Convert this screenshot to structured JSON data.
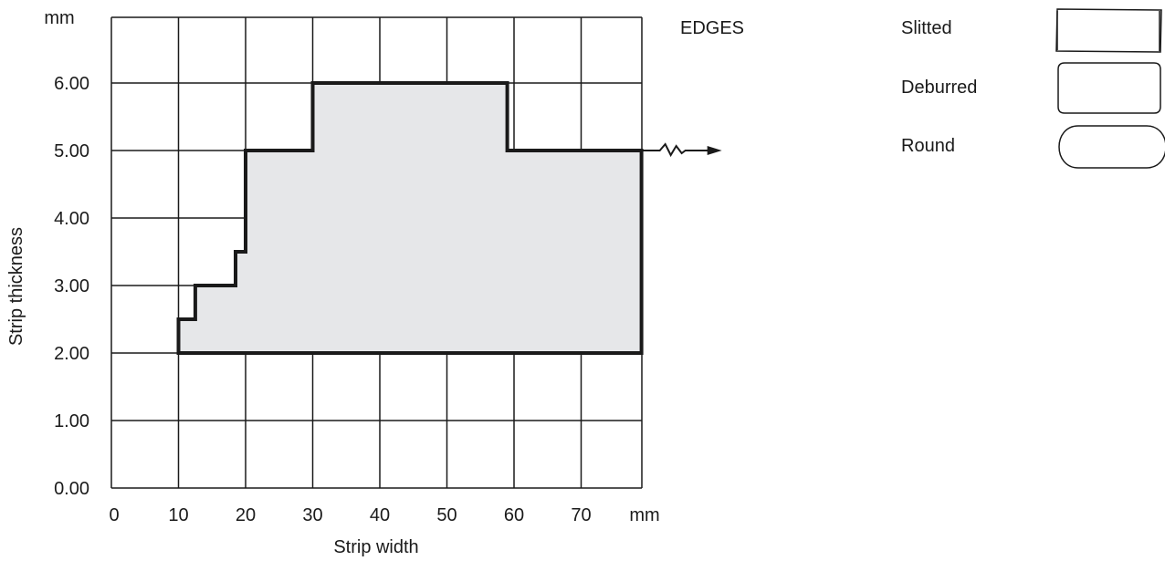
{
  "chart_data": {
    "type": "area",
    "xlabel": "Strip width",
    "ylabel": "Strip thickness",
    "x_unit": "mm",
    "y_unit": "mm",
    "xlim": [
      0,
      79
    ],
    "ylim": [
      0,
      6.3
    ],
    "x_ticks": [
      "0",
      "10",
      "20",
      "30",
      "40",
      "50",
      "60",
      "70"
    ],
    "y_ticks": [
      "0.00",
      "1.00",
      "2.00",
      "3.00",
      "4.00",
      "5.00",
      "6.00"
    ],
    "grid": true,
    "region": {
      "name": "",
      "outline": [
        {
          "x": 10,
          "y": 2.0
        },
        {
          "x": 10,
          "y": 2.5
        },
        {
          "x": 12.5,
          "y": 2.5
        },
        {
          "x": 12.5,
          "y": 3.0
        },
        {
          "x": 18.5,
          "y": 3.0
        },
        {
          "x": 18.5,
          "y": 3.5
        },
        {
          "x": 20,
          "y": 3.5
        },
        {
          "x": 20,
          "y": 5.0
        },
        {
          "x": 30,
          "y": 5.0
        },
        {
          "x": 30,
          "y": 6.0
        },
        {
          "x": 59,
          "y": 6.0
        },
        {
          "x": 59,
          "y": 5.0
        },
        {
          "x": 79,
          "y": 5.0
        },
        {
          "x": 79,
          "y": 2.0
        }
      ],
      "continues_right_at_y": 5.0
    },
    "fill_color": "#e6e7e9",
    "line_color": "#1a1a1a"
  },
  "legend": {
    "title": "EDGES",
    "items": [
      {
        "label": "Slitted",
        "shape": "slitted-edge-icon"
      },
      {
        "label": "Deburred",
        "shape": "deburred-edge-icon"
      },
      {
        "label": "Round",
        "shape": "round-edge-icon"
      }
    ]
  }
}
